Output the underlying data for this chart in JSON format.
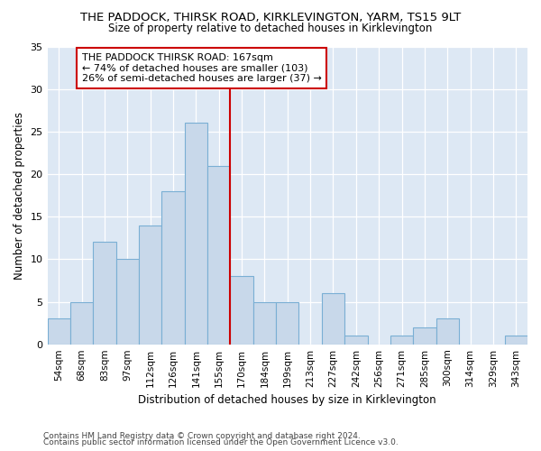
{
  "title": "THE PADDOCK, THIRSK ROAD, KIRKLEVINGTON, YARM, TS15 9LT",
  "subtitle": "Size of property relative to detached houses in Kirklevington",
  "xlabel": "Distribution of detached houses by size in Kirklevington",
  "ylabel": "Number of detached properties",
  "categories": [
    "54sqm",
    "68sqm",
    "83sqm",
    "97sqm",
    "112sqm",
    "126sqm",
    "141sqm",
    "155sqm",
    "170sqm",
    "184sqm",
    "199sqm",
    "213sqm",
    "227sqm",
    "242sqm",
    "256sqm",
    "271sqm",
    "285sqm",
    "300sqm",
    "314sqm",
    "329sqm",
    "343sqm"
  ],
  "values": [
    3,
    5,
    12,
    10,
    14,
    18,
    26,
    21,
    8,
    5,
    5,
    0,
    6,
    1,
    0,
    1,
    2,
    3,
    0,
    0,
    1
  ],
  "bar_color": "#c8d8ea",
  "bar_edgecolor": "#7aafd4",
  "bg_color": "#dde8f4",
  "vline_x": 8,
  "vline_color": "#cc0000",
  "annotation_text": "THE PADDOCK THIRSK ROAD: 167sqm\n← 74% of detached houses are smaller (103)\n26% of semi-detached houses are larger (37) →",
  "annotation_box_color": "white",
  "annotation_box_edgecolor": "#cc0000",
  "ylim": [
    0,
    35
  ],
  "yticks": [
    0,
    5,
    10,
    15,
    20,
    25,
    30,
    35
  ],
  "footer1": "Contains HM Land Registry data © Crown copyright and database right 2024.",
  "footer2": "Contains public sector information licensed under the Open Government Licence v3.0."
}
